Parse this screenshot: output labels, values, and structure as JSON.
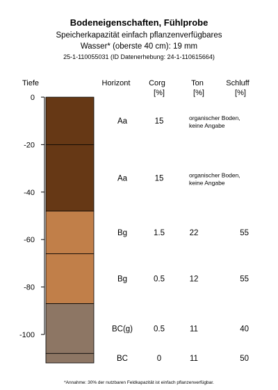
{
  "chart_data": {
    "type": "table",
    "title": "Bodeneigenschaften, Fühlprobe",
    "subtitle_line1": "Speicherkapazität einfach pflanzenverfügbares",
    "subtitle_line2": "Wasser* (oberste 40 cm): 19 mm",
    "subtitle_line3": "25-1-110055031 (ID Datenerhebung: 24-1-110615664)",
    "ylabel": "Tiefe",
    "ylim": [
      0,
      -112
    ],
    "yticks": [
      "0",
      "-20",
      "-40",
      "-60",
      "-80",
      "-100"
    ],
    "columns": {
      "horizont": "Horizont",
      "corg": "Corg",
      "corg_unit": "[%]",
      "ton": "Ton",
      "ton_unit": "[%]",
      "schluff": "Schluff",
      "schluff_unit": "[%]"
    },
    "layers": [
      {
        "top": 0,
        "bottom": -20,
        "color": "#663815",
        "horizont": "Aa",
        "corg": "15",
        "ton": "",
        "schluff": "",
        "note1": "organischer Boden,",
        "note2": "keine Angabe"
      },
      {
        "top": -20,
        "bottom": -48,
        "color": "#663815",
        "horizont": "Aa",
        "corg": "15",
        "ton": "",
        "schluff": "",
        "note1": "organischer Boden,",
        "note2": "keine Angabe"
      },
      {
        "top": -48,
        "bottom": -66,
        "color": "#c17f49",
        "horizont": "Bg",
        "corg": "1.5",
        "ton": "22",
        "schluff": "55",
        "note1": "",
        "note2": ""
      },
      {
        "top": -66,
        "bottom": -87,
        "color": "#c17f49",
        "horizont": "Bg",
        "corg": "0.5",
        "ton": "12",
        "schluff": "55",
        "note1": "",
        "note2": ""
      },
      {
        "top": -87,
        "bottom": -108,
        "color": "#8d7664",
        "horizont": "BC(g)",
        "corg": "0.5",
        "ton": "11",
        "schluff": "40",
        "note1": "",
        "note2": ""
      },
      {
        "top": -108,
        "bottom": -112,
        "color": "#8d7664",
        "horizont": "BC",
        "corg": "0",
        "ton": "11",
        "schluff": "50",
        "note1": "",
        "note2": ""
      }
    ],
    "footnote": "*Annahme: 30% der nutzbaren Feldkapazität ist einfach pflanzenverfügbar."
  }
}
